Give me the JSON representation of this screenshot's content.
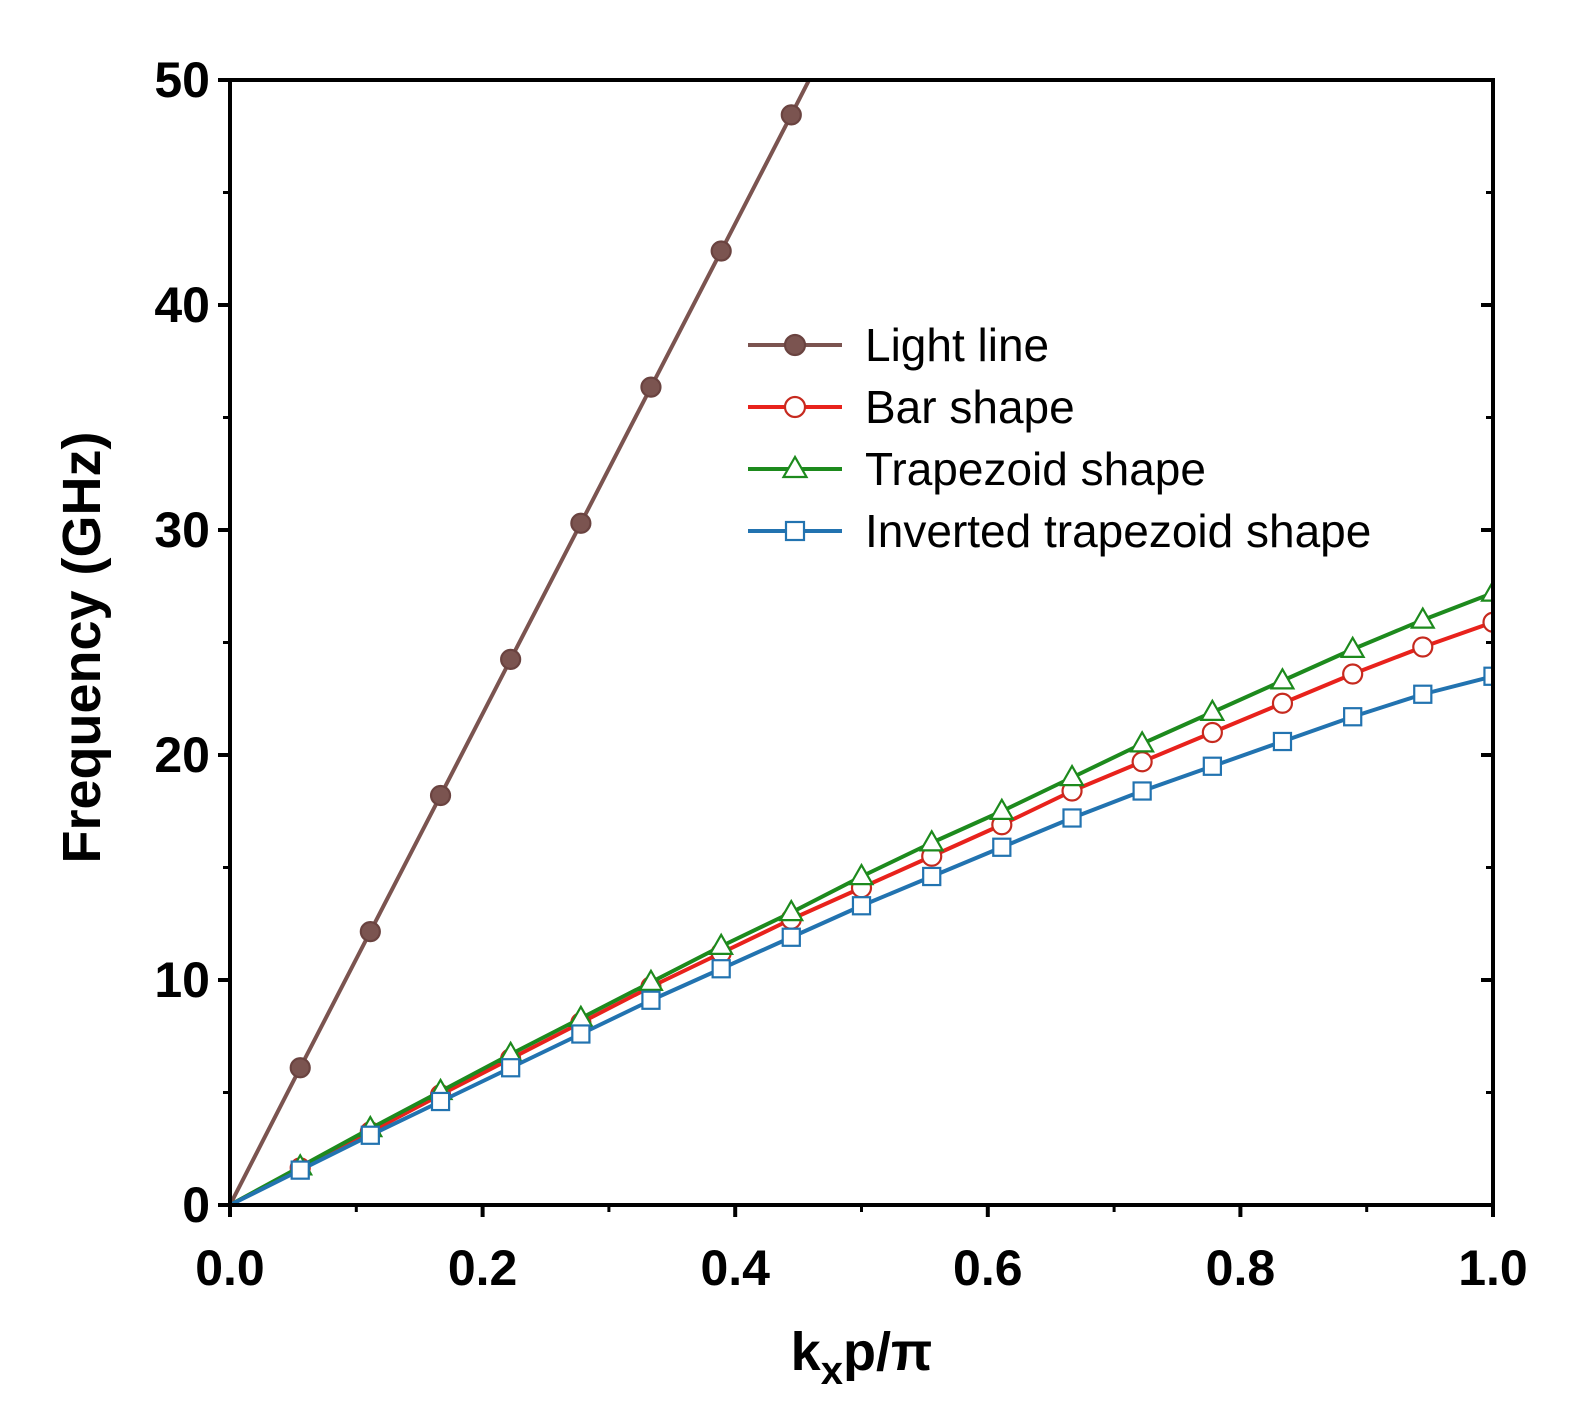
{
  "chart_data": {
    "type": "line",
    "xlabel": {
      "base": "k",
      "sub": "x",
      "rest": "p/π"
    },
    "ylabel": "Frequency (GHz)",
    "xlim": [
      0.0,
      1.0
    ],
    "ylim": [
      0,
      50
    ],
    "x_ticks": [
      "0.0",
      "0.2",
      "0.4",
      "0.6",
      "0.8",
      "1.0"
    ],
    "y_ticks": [
      "0",
      "10",
      "20",
      "30",
      "40",
      "50"
    ],
    "legend_position": "upper-right",
    "series": [
      {
        "name": "Light line",
        "color": "#7b5450",
        "marker": "filled-circle",
        "marker_fill": "#7b5450",
        "marker_stroke": "#6a4340",
        "x": [
          0.0,
          0.0556,
          0.1111,
          0.1667,
          0.2222,
          0.2778,
          0.3333,
          0.3889,
          0.4444
        ],
        "y": [
          0,
          6.1,
          12.15,
          18.2,
          24.25,
          30.3,
          36.35,
          42.4,
          48.45
        ],
        "line_extends_to": [
          0.4585,
          50
        ]
      },
      {
        "name": "Bar shape",
        "color": "#e8221c",
        "marker": "open-circle",
        "marker_fill": "#ffffff",
        "marker_stroke": "#c62a1f",
        "x": [
          0.0,
          0.0556,
          0.1111,
          0.1667,
          0.2222,
          0.2778,
          0.3333,
          0.3889,
          0.4444,
          0.5,
          0.5556,
          0.6111,
          0.6667,
          0.7222,
          0.7778,
          0.8333,
          0.8889,
          0.9444,
          1.0
        ],
        "y": [
          0,
          1.65,
          3.25,
          4.9,
          6.5,
          8.1,
          9.7,
          11.2,
          12.7,
          14.1,
          15.5,
          16.9,
          18.4,
          19.7,
          21.0,
          22.3,
          23.6,
          24.8,
          25.9
        ]
      },
      {
        "name": "Trapezoid shape",
        "color": "#1d8a1d",
        "marker": "open-triangle",
        "marker_fill": "#ffffff",
        "marker_stroke": "#1d8a1d",
        "x": [
          0.0,
          0.0556,
          0.1111,
          0.1667,
          0.2222,
          0.2778,
          0.3333,
          0.3889,
          0.4444,
          0.5,
          0.5556,
          0.6111,
          0.6667,
          0.7222,
          0.7778,
          0.8333,
          0.8889,
          0.9444,
          1.0
        ],
        "y": [
          0,
          1.7,
          3.4,
          5.05,
          6.7,
          8.3,
          9.9,
          11.5,
          13.0,
          14.6,
          16.1,
          17.5,
          19.0,
          20.5,
          21.9,
          23.3,
          24.7,
          26.0,
          27.2
        ]
      },
      {
        "name": "Inverted trapezoid shape",
        "color": "#2273b0",
        "marker": "open-square",
        "marker_fill": "#ffffff",
        "marker_stroke": "#2273b0",
        "x": [
          0.0,
          0.0556,
          0.1111,
          0.1667,
          0.2222,
          0.2778,
          0.3333,
          0.3889,
          0.4444,
          0.5,
          0.5556,
          0.6111,
          0.6667,
          0.7222,
          0.7778,
          0.8333,
          0.8889,
          0.9444,
          1.0
        ],
        "y": [
          0,
          1.55,
          3.1,
          4.6,
          6.1,
          7.6,
          9.1,
          10.5,
          11.9,
          13.3,
          14.6,
          15.9,
          17.2,
          18.4,
          19.5,
          20.6,
          21.7,
          22.7,
          23.5
        ]
      }
    ]
  }
}
